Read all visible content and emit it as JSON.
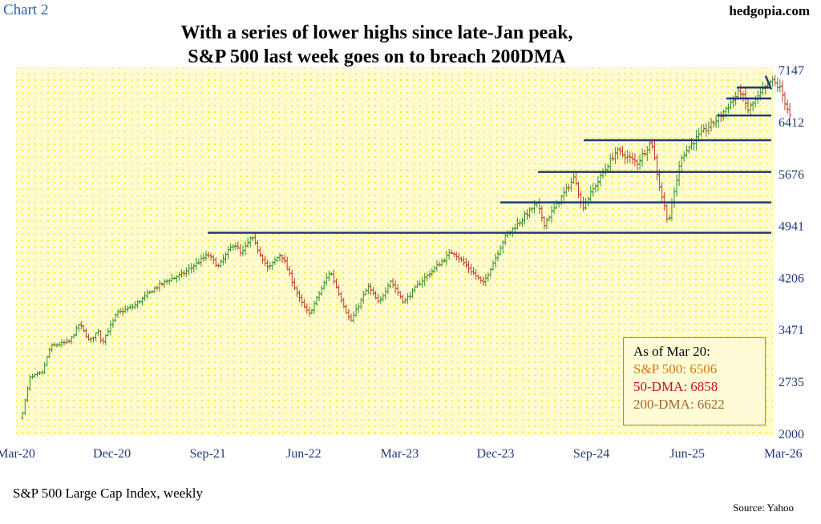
{
  "header": {
    "chart_label": "Chart 2",
    "brand": "hedgopia.com",
    "title_line1": "With a series of lower highs since late-Jan peak,",
    "title_line2": "S&P 500 last week goes on to breach 200DMA"
  },
  "footer": {
    "subtitle": "S&P 500 Large Cap Index, weekly",
    "source": "Source: Yahoo"
  },
  "info_box": {
    "heading": "As of Mar 20:",
    "line1": "S&P 500: 6506",
    "line2": "50-DMA: 6858",
    "line3": "200-DMA: 6622"
  },
  "colors": {
    "plot_bg": "#fffbd0",
    "dots": "#f2ea00",
    "up_bar": "#2f8f2a",
    "down_bar": "#c0392b",
    "lines": "#1f3a7a",
    "tick_text": "#1f3a7a",
    "heading": "#000000",
    "sp500_text": "#d97706",
    "dma50_text": "#c0121e",
    "dma200_text": "#a0672a"
  },
  "chart_data": {
    "type": "ohlc",
    "title": "With a series of lower highs since late-Jan peak, S&P 500 last week goes on to breach 200DMA",
    "xlabel": "",
    "ylabel": "",
    "x_ticks": [
      "Mar-20",
      "Dec-20",
      "Sep-21",
      "Jun-22",
      "Mar-23",
      "Dec-23",
      "Sep-24",
      "Jun-25",
      "Mar-26"
    ],
    "y_ticks": [
      2000,
      2735,
      3471,
      4206,
      4941,
      5676,
      6412,
      7147
    ],
    "ylim": [
      2000,
      7147
    ],
    "xlim": [
      "Mar-20",
      "Mar-26"
    ],
    "grid": "dotted",
    "last_close": 6506,
    "close_path": [
      {
        "x": "2020-03-20",
        "y": 2305
      },
      {
        "x": "2020-04-10",
        "y": 2790
      },
      {
        "x": "2020-05-15",
        "y": 2860
      },
      {
        "x": "2020-06-08",
        "y": 3230
      },
      {
        "x": "2020-08-01",
        "y": 3300
      },
      {
        "x": "2020-08-30",
        "y": 3550
      },
      {
        "x": "2020-09-28",
        "y": 3300
      },
      {
        "x": "2020-10-25",
        "y": 3470
      },
      {
        "x": "2020-11-01",
        "y": 3270
      },
      {
        "x": "2020-12-15",
        "y": 3700
      },
      {
        "x": "2021-02-01",
        "y": 3800
      },
      {
        "x": "2021-04-01",
        "y": 4050
      },
      {
        "x": "2021-05-10",
        "y": 4170
      },
      {
        "x": "2021-06-20",
        "y": 4250
      },
      {
        "x": "2021-09-01",
        "y": 4530
      },
      {
        "x": "2021-10-01",
        "y": 4360
      },
      {
        "x": "2021-11-15",
        "y": 4700
      },
      {
        "x": "2021-12-05",
        "y": 4530
      },
      {
        "x": "2022-01-03",
        "y": 4780
      },
      {
        "x": "2022-02-20",
        "y": 4330
      },
      {
        "x": "2022-03-28",
        "y": 4550
      },
      {
        "x": "2022-05-20",
        "y": 3900
      },
      {
        "x": "2022-06-16",
        "y": 3680
      },
      {
        "x": "2022-08-15",
        "y": 4300
      },
      {
        "x": "2022-10-12",
        "y": 3580
      },
      {
        "x": "2022-12-01",
        "y": 4080
      },
      {
        "x": "2023-01-01",
        "y": 3840
      },
      {
        "x": "2023-02-02",
        "y": 4170
      },
      {
        "x": "2023-03-13",
        "y": 3860
      },
      {
        "x": "2023-05-01",
        "y": 4150
      },
      {
        "x": "2023-07-31",
        "y": 4580
      },
      {
        "x": "2023-10-27",
        "y": 4120
      },
      {
        "x": "2023-12-28",
        "y": 4780
      },
      {
        "x": "2024-03-28",
        "y": 5250
      },
      {
        "x": "2024-04-19",
        "y": 4970
      },
      {
        "x": "2024-07-16",
        "y": 5640
      },
      {
        "x": "2024-08-05",
        "y": 5190
      },
      {
        "x": "2024-11-11",
        "y": 6000
      },
      {
        "x": "2025-01-10",
        "y": 5830
      },
      {
        "x": "2025-02-19",
        "y": 6140
      },
      {
        "x": "2025-03-13",
        "y": 5520
      },
      {
        "x": "2025-04-08",
        "y": 4980
      },
      {
        "x": "2025-05-15",
        "y": 5920
      },
      {
        "x": "2025-07-01",
        "y": 6200
      },
      {
        "x": "2025-09-01",
        "y": 6480
      },
      {
        "x": "2025-10-30",
        "y": 6850
      },
      {
        "x": "2025-11-21",
        "y": 6580
      },
      {
        "x": "2026-01-27",
        "y": 7000
      },
      {
        "x": "2026-02-20",
        "y": 6880
      },
      {
        "x": "2026-03-20",
        "y": 6506
      }
    ],
    "horizontal_lines": [
      {
        "y": 4840,
        "from": "2021-09-01",
        "to": "2026-03-25"
      },
      {
        "y": 5270,
        "from": "2023-12-15",
        "to": "2026-03-25"
      },
      {
        "y": 5700,
        "from": "2024-04-01",
        "to": "2026-03-25"
      },
      {
        "y": 6150,
        "from": "2024-08-10",
        "to": "2026-03-25"
      },
      {
        "y": 6500,
        "from": "2025-08-25",
        "to": "2026-03-25"
      },
      {
        "y": 6740,
        "from": "2025-09-20",
        "to": "2026-03-25"
      },
      {
        "y": 6895,
        "from": "2025-10-20",
        "to": "2026-03-25"
      }
    ],
    "trend_line": {
      "from": {
        "x": "2026-01-10",
        "y": 7060
      },
      "to": {
        "x": "2026-03-25",
        "y": 6870
      }
    }
  }
}
